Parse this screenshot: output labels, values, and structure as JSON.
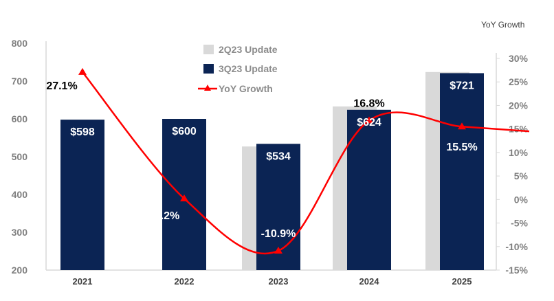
{
  "chart_data": {
    "type": "bar",
    "categories": [
      "2021",
      "2022",
      "2023",
      "2024",
      "2025"
    ],
    "series": [
      {
        "name": "2Q23 Update",
        "kind": "bar",
        "color": "#d9d9d9",
        "values": [
          null,
          null,
          527,
          633,
          724
        ]
      },
      {
        "name": "3Q23 Update",
        "kind": "bar",
        "color": "#0b2454",
        "values": [
          598,
          600,
          534,
          624,
          721
        ],
        "data_labels": [
          "$598",
          "$600",
          "$534",
          "$624",
          "$721"
        ]
      },
      {
        "name": "YoY Growth",
        "kind": "line",
        "axis": "right",
        "color": "#ff0000",
        "marker": "triangle",
        "values": [
          27.1,
          0.2,
          -10.9,
          16.8,
          15.5
        ],
        "data_labels": [
          "27.1%",
          "0.2%",
          "-10.9%",
          "16.8%",
          "15.5%"
        ]
      }
    ],
    "ylim": [
      200,
      800
    ],
    "yticks": [
      "200",
      "300",
      "400",
      "500",
      "600",
      "700",
      "800"
    ],
    "y2lim": [
      -15,
      30
    ],
    "y2ticks": [
      "-15%",
      "-10%",
      "-5%",
      "0%",
      "5%",
      "10%",
      "15%",
      "20%",
      "25%",
      "30%"
    ],
    "y2label": "YoY Growth",
    "legend": "top-center",
    "grid": false
  }
}
